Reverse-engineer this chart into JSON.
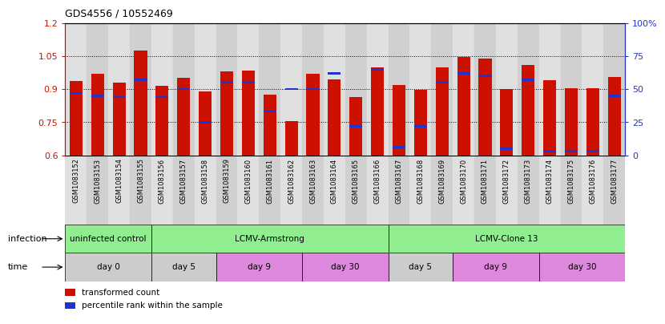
{
  "title": "GDS4556 / 10552469",
  "samples": [
    "GSM1083152",
    "GSM1083153",
    "GSM1083154",
    "GSM1083155",
    "GSM1083156",
    "GSM1083157",
    "GSM1083158",
    "GSM1083159",
    "GSM1083160",
    "GSM1083161",
    "GSM1083162",
    "GSM1083163",
    "GSM1083164",
    "GSM1083165",
    "GSM1083166",
    "GSM1083167",
    "GSM1083168",
    "GSM1083169",
    "GSM1083170",
    "GSM1083171",
    "GSM1083172",
    "GSM1083173",
    "GSM1083174",
    "GSM1083175",
    "GSM1083176",
    "GSM1083177"
  ],
  "bar_heights": [
    0.935,
    0.97,
    0.928,
    1.075,
    0.915,
    0.952,
    0.89,
    0.98,
    0.985,
    0.875,
    0.755,
    0.97,
    0.945,
    0.862,
    1.0,
    0.92,
    0.898,
    1.0,
    1.045,
    1.04,
    0.9,
    1.01,
    0.94,
    0.905,
    0.905,
    0.955
  ],
  "blue_pct": [
    47,
    45,
    44,
    57,
    44,
    50,
    25,
    55,
    55,
    33,
    50,
    50,
    62,
    22,
    65,
    6,
    22,
    55,
    62,
    60,
    5,
    57,
    3,
    3,
    3,
    45
  ],
  "ymin": 0.6,
  "ymax": 1.2,
  "yticks_left": [
    0.6,
    0.75,
    0.9,
    1.05,
    1.2
  ],
  "yticks_right": [
    0,
    25,
    50,
    75,
    100
  ],
  "bar_color": "#cc1100",
  "blue_color": "#2233cc",
  "infection_label": "infection",
  "time_label": "time",
  "infection_groups": [
    {
      "label": "uninfected control",
      "color": "#90ee90",
      "start": 0,
      "end": 4
    },
    {
      "label": "LCMV-Armstrong",
      "color": "#90ee90",
      "start": 4,
      "end": 15
    },
    {
      "label": "LCMV-Clone 13",
      "color": "#90ee90",
      "start": 15,
      "end": 26
    }
  ],
  "time_groups": [
    {
      "label": "day 0",
      "color": "#cccccc",
      "start": 0,
      "end": 4
    },
    {
      "label": "day 5",
      "color": "#cccccc",
      "start": 4,
      "end": 7
    },
    {
      "label": "day 9",
      "color": "#dd88dd",
      "start": 7,
      "end": 11
    },
    {
      "label": "day 30",
      "color": "#dd88dd",
      "start": 11,
      "end": 15
    },
    {
      "label": "day 5",
      "color": "#cccccc",
      "start": 15,
      "end": 18
    },
    {
      "label": "day 9",
      "color": "#dd88dd",
      "start": 18,
      "end": 22
    },
    {
      "label": "day 30",
      "color": "#dd88dd",
      "start": 22,
      "end": 26
    }
  ],
  "legend_items": [
    {
      "label": "transformed count",
      "color": "#cc1100"
    },
    {
      "label": "percentile rank within the sample",
      "color": "#2233cc"
    }
  ],
  "bar_width": 0.6,
  "col_bg_even": "#e0e0e0",
  "col_bg_odd": "#d0d0d0"
}
